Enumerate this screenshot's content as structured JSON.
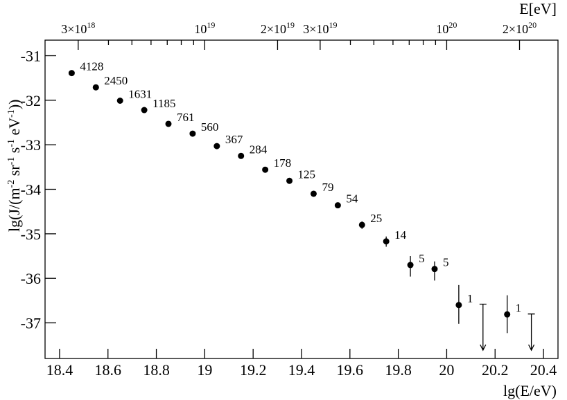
{
  "chart_data": {
    "type": "scatter",
    "xlabel": "lg(E/eV)",
    "ylabel": [
      {
        "text": "lg(J/(m"
      },
      {
        "sup": "-2"
      },
      {
        "text": " sr"
      },
      {
        "sup": "-1"
      },
      {
        "text": " s"
      },
      {
        "sup": "-1"
      },
      {
        "text": " eV"
      },
      {
        "sup": "-1"
      },
      {
        "text": "))"
      }
    ],
    "x2label": "E[eV]",
    "xlim": [
      18.34,
      20.46
    ],
    "ylim": [
      -37.8,
      -30.65
    ],
    "xticks": [
      {
        "value": 18.4,
        "label": "18.4"
      },
      {
        "value": 18.6,
        "label": "18.6"
      },
      {
        "value": 18.8,
        "label": "18.8"
      },
      19,
      {
        "value": 19.2,
        "label": "19.2"
      },
      {
        "value": 19.4,
        "label": "19.4"
      },
      {
        "value": 19.6,
        "label": "19.6"
      },
      {
        "value": 19.8,
        "label": "19.8"
      },
      20,
      {
        "value": 20.2,
        "label": "20.2"
      },
      {
        "value": 20.4,
        "label": "20.4"
      }
    ],
    "yticks": [
      -31,
      -32,
      -33,
      -34,
      -35,
      -36,
      -37
    ],
    "x2ticks": [
      {
        "value": 18.477,
        "label": "3×10",
        "exponent": "18"
      },
      {
        "value": 19,
        "label": "10",
        "exponent": "19"
      },
      {
        "value": 19.301,
        "label": "2×10",
        "exponent": "19"
      },
      {
        "value": 19.477,
        "label": "3×10",
        "exponent": "19"
      },
      {
        "value": 20,
        "label": "10",
        "exponent": "20"
      },
      {
        "value": 20.301,
        "label": "2×10",
        "exponent": "20"
      }
    ],
    "x2minor": [
      18.602,
      18.699,
      18.778,
      18.845,
      18.903,
      18.954,
      19.602,
      19.699,
      19.778,
      19.845,
      19.903,
      19.954
    ],
    "color": "#000000",
    "x": [
      18.45,
      18.55,
      18.65,
      18.75,
      18.85,
      18.95,
      19.05,
      19.15,
      19.25,
      19.35,
      19.45,
      19.55,
      19.65,
      19.75,
      19.85,
      19.95,
      20.05,
      20.15,
      20.25,
      20.35
    ],
    "values": [
      -31.39,
      -31.71,
      -32.01,
      -32.22,
      -32.53,
      -32.75,
      -33.03,
      -33.25,
      -33.56,
      -33.81,
      -34.1,
      -34.36,
      -34.8,
      -35.17,
      -35.7,
      -35.79,
      -36.6,
      null,
      -36.81,
      null
    ],
    "err_up": [
      0.01,
      0.01,
      0.01,
      0.02,
      0.02,
      0.02,
      0.03,
      0.03,
      0.04,
      0.04,
      0.05,
      0.06,
      0.08,
      0.11,
      0.2,
      0.17,
      0.45,
      null,
      0.43,
      null
    ],
    "err_down": [
      0.01,
      0.01,
      0.01,
      0.02,
      0.02,
      0.02,
      0.03,
      0.03,
      0.04,
      0.04,
      0.05,
      0.06,
      0.09,
      0.12,
      0.26,
      0.26,
      0.42,
      null,
      0.42,
      null
    ],
    "upper_limits": [
      null,
      null,
      null,
      null,
      null,
      null,
      null,
      null,
      null,
      null,
      null,
      null,
      null,
      null,
      null,
      null,
      null,
      -36.58,
      null,
      -36.8
    ],
    "counts": [
      4128,
      2450,
      1631,
      1185,
      761,
      560,
      367,
      284,
      178,
      125,
      79,
      54,
      25,
      14,
      5,
      5,
      1,
      null,
      1,
      null
    ]
  }
}
